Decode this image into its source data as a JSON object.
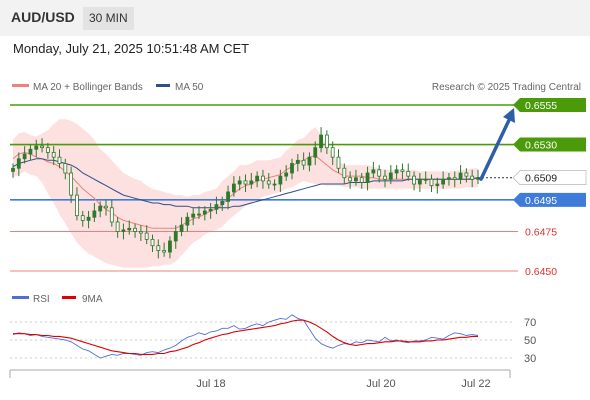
{
  "header": {
    "symbol": "AUD/USD",
    "timeframe": "30 MIN"
  },
  "timestamp": "Monday, July 21, 2025 10:51:48 AM CET",
  "legend": {
    "items": [
      {
        "label": "MA 20 + Bollinger Bands",
        "color": "#f08080"
      },
      {
        "label": "MA 50",
        "color": "#2e4f8c"
      }
    ],
    "credit": "Research © 2025 Trading Central"
  },
  "rsi_legend": {
    "items": [
      {
        "label": "RSI",
        "color": "#4f6fd8"
      },
      {
        "label": "9MA",
        "color": "#e00000"
      }
    ]
  },
  "colors": {
    "resistance": "#4a9a0a",
    "pivot": "#3f7bd9",
    "support": "#e88080",
    "candle": "#2d7a2d",
    "arrow": "#2d5ea8",
    "band_fill": "#fde0e0"
  },
  "chart_data": [
    {
      "type": "candlestick",
      "ylim": [
        0.644,
        0.6565
      ],
      "x_labels": [
        "Jul 18",
        "Jul 20",
        "Jul 22"
      ],
      "last_price": 0.6509,
      "levels": [
        {
          "value": 0.6555,
          "label": "0.6555",
          "kind": "resistance"
        },
        {
          "value": 0.653,
          "label": "0.6530",
          "kind": "resistance"
        },
        {
          "value": 0.6495,
          "label": "0.6495",
          "kind": "pivot"
        },
        {
          "value": 0.6475,
          "label": "0.6475",
          "kind": "support"
        },
        {
          "value": 0.645,
          "label": "0.6450",
          "kind": "support"
        }
      ],
      "arrow": {
        "from_price": 0.651,
        "to_price": 0.6555
      },
      "close": [
        0.6515,
        0.6521,
        0.6524,
        0.6527,
        0.6529,
        0.6528,
        0.6525,
        0.6522,
        0.6518,
        0.6512,
        0.6498,
        0.6485,
        0.6482,
        0.6484,
        0.6488,
        0.6491,
        0.649,
        0.6481,
        0.6475,
        0.6476,
        0.6477,
        0.6475,
        0.6474,
        0.647,
        0.6466,
        0.6463,
        0.6462,
        0.6469,
        0.6475,
        0.6479,
        0.6484,
        0.6486,
        0.6486,
        0.6488,
        0.6489,
        0.6492,
        0.6494,
        0.65,
        0.6505,
        0.6507,
        0.6505,
        0.6507,
        0.651,
        0.6507,
        0.6505,
        0.6505,
        0.651,
        0.6512,
        0.6518,
        0.652,
        0.6517,
        0.6522,
        0.6528,
        0.6536,
        0.6528,
        0.6522,
        0.6515,
        0.6509,
        0.6507,
        0.6509,
        0.6506,
        0.6512,
        0.6514,
        0.651,
        0.6508,
        0.6512,
        0.6514,
        0.6513,
        0.651,
        0.6505,
        0.6508,
        0.6508,
        0.6504,
        0.6505,
        0.6508,
        0.6509,
        0.6508,
        0.6512,
        0.651,
        0.6508,
        0.6509
      ],
      "bb_upper": [
        0.6533,
        0.6537,
        0.6538,
        0.6536,
        0.6535,
        0.6537,
        0.6539,
        0.6543,
        0.6546,
        0.6546,
        0.6545,
        0.6543,
        0.654,
        0.6537,
        0.6533,
        0.6527,
        0.6524,
        0.652,
        0.6516,
        0.6512,
        0.651,
        0.6508,
        0.6507,
        0.6504,
        0.6502,
        0.6501,
        0.65,
        0.6499,
        0.6498,
        0.6498,
        0.6497,
        0.6498,
        0.6498,
        0.65,
        0.6501,
        0.6502,
        0.6507,
        0.651,
        0.6513,
        0.6517,
        0.6517,
        0.6518,
        0.652,
        0.652,
        0.652,
        0.6521,
        0.6522,
        0.6526,
        0.6529,
        0.6533,
        0.6534,
        0.6538,
        0.6541,
        0.6536,
        0.6529,
        0.6524,
        0.6519,
        0.6517,
        0.6517,
        0.6517,
        0.6517,
        0.6517,
        0.6516,
        0.6515,
        0.6514,
        0.6514,
        0.6514,
        0.6514,
        0.6514,
        0.6514,
        0.6513,
        0.6513,
        0.6513,
        0.6513,
        0.6513,
        0.6513,
        0.6513,
        0.6514,
        0.6514,
        0.6515,
        0.6515
      ],
      "bb_lower": [
        0.6509,
        0.6511,
        0.6513,
        0.6511,
        0.651,
        0.6506,
        0.6499,
        0.6493,
        0.6486,
        0.648,
        0.6474,
        0.6468,
        0.6464,
        0.6461,
        0.6459,
        0.6457,
        0.6455,
        0.6454,
        0.6453,
        0.6452,
        0.6452,
        0.6452,
        0.6452,
        0.6452,
        0.6453,
        0.6453,
        0.6454,
        0.6454,
        0.6456,
        0.646,
        0.6464,
        0.6468,
        0.647,
        0.6473,
        0.6475,
        0.6476,
        0.6478,
        0.6482,
        0.6485,
        0.6488,
        0.6491,
        0.6493,
        0.6495,
        0.6497,
        0.6498,
        0.6499,
        0.65,
        0.6502,
        0.6503,
        0.6505,
        0.6507,
        0.6506,
        0.6505,
        0.6505,
        0.6504,
        0.6504,
        0.6504,
        0.6503,
        0.6503,
        0.6503,
        0.6502,
        0.6502,
        0.6502,
        0.6502,
        0.6502,
        0.6502,
        0.6502,
        0.6502,
        0.6502,
        0.6502,
        0.6502,
        0.6502,
        0.6502,
        0.6502,
        0.6502,
        0.6502,
        0.6502,
        0.6502,
        0.6503,
        0.6503,
        0.6503
      ],
      "ma20": [
        0.6521,
        0.6524,
        0.6525,
        0.6524,
        0.6522,
        0.6521,
        0.6519,
        0.6518,
        0.6516,
        0.6513,
        0.651,
        0.6506,
        0.6502,
        0.6499,
        0.6496,
        0.6492,
        0.6489,
        0.6487,
        0.6484,
        0.6482,
        0.6481,
        0.648,
        0.6479,
        0.6478,
        0.6477,
        0.6477,
        0.6477,
        0.6477,
        0.6477,
        0.6479,
        0.6481,
        0.6483,
        0.6484,
        0.6486,
        0.6488,
        0.6489,
        0.6492,
        0.6496,
        0.6499,
        0.6502,
        0.6504,
        0.6505,
        0.6507,
        0.6508,
        0.6509,
        0.651,
        0.6511,
        0.6514,
        0.6516,
        0.6519,
        0.652,
        0.6522,
        0.6523,
        0.652,
        0.6517,
        0.6514,
        0.6512,
        0.651,
        0.651,
        0.651,
        0.651,
        0.6509,
        0.6509,
        0.6508,
        0.6508,
        0.6508,
        0.6508,
        0.6508,
        0.6508,
        0.6508,
        0.6508,
        0.6508,
        0.6508,
        0.6508,
        0.6508,
        0.6508,
        0.6508,
        0.6508,
        0.6508,
        0.6509,
        0.6509
      ],
      "ma50": [
        0.6516,
        0.6518,
        0.6519,
        0.652,
        0.6521,
        0.6521,
        0.652,
        0.652,
        0.6519,
        0.6518,
        0.6517,
        0.6515,
        0.6512,
        0.651,
        0.6508,
        0.6506,
        0.6504,
        0.6502,
        0.65,
        0.6498,
        0.6497,
        0.6496,
        0.6495,
        0.6494,
        0.6493,
        0.6493,
        0.6492,
        0.6492,
        0.6491,
        0.6491,
        0.6491,
        0.649,
        0.649,
        0.649,
        0.649,
        0.649,
        0.649,
        0.649,
        0.6491,
        0.6491,
        0.6492,
        0.6493,
        0.6494,
        0.6495,
        0.6496,
        0.6497,
        0.6498,
        0.6499,
        0.65,
        0.6501,
        0.6502,
        0.6503,
        0.6504,
        0.6505,
        0.6505,
        0.6505,
        0.6505,
        0.6505,
        0.6506,
        0.6506,
        0.6506,
        0.6506,
        0.6507,
        0.6507,
        0.6507,
        0.6507,
        0.6507,
        0.6507,
        0.6508,
        0.6508,
        0.6508,
        0.6508,
        0.6508,
        0.6508,
        0.6508,
        0.6508,
        0.6508,
        0.6508,
        0.6508,
        0.6508,
        0.6509
      ]
    },
    {
      "type": "line",
      "ylim": [
        20,
        80
      ],
      "y_ticks": [
        70,
        50,
        30
      ],
      "series": [
        {
          "name": "RSI",
          "values": [
            56,
            58,
            57,
            55,
            56,
            54,
            53,
            52,
            51,
            50,
            48,
            44,
            40,
            38,
            34,
            30,
            32,
            34,
            33,
            35,
            35,
            34,
            33,
            36,
            37,
            36,
            39,
            41,
            44,
            49,
            53,
            55,
            58,
            56,
            59,
            60,
            63,
            63,
            66,
            62,
            63,
            66,
            68,
            66,
            70,
            72,
            74,
            73,
            78,
            74,
            72,
            62,
            52,
            46,
            43,
            41,
            44,
            46,
            45,
            48,
            47,
            50,
            49,
            48,
            53,
            49,
            50,
            48,
            47,
            49,
            49,
            50,
            53,
            52,
            51,
            55,
            58,
            57,
            55,
            56,
            55
          ]
        },
        {
          "name": "9MA",
          "values": [
            57,
            57,
            57,
            56,
            56,
            55,
            55,
            54,
            54,
            53,
            52,
            50,
            48,
            46,
            44,
            42,
            40,
            38,
            37,
            36,
            35,
            35,
            34,
            34,
            34,
            35,
            35,
            37,
            38,
            40,
            42,
            45,
            47,
            50,
            52,
            54,
            56,
            57,
            59,
            60,
            61,
            62,
            63,
            64,
            65,
            66,
            68,
            69,
            71,
            72,
            72,
            70,
            67,
            63,
            59,
            54,
            50,
            47,
            45,
            44,
            45,
            46,
            46,
            47,
            48,
            48,
            49,
            49,
            48,
            48,
            48,
            49,
            49,
            50,
            50,
            51,
            52,
            53,
            53,
            54,
            54
          ]
        }
      ]
    }
  ]
}
